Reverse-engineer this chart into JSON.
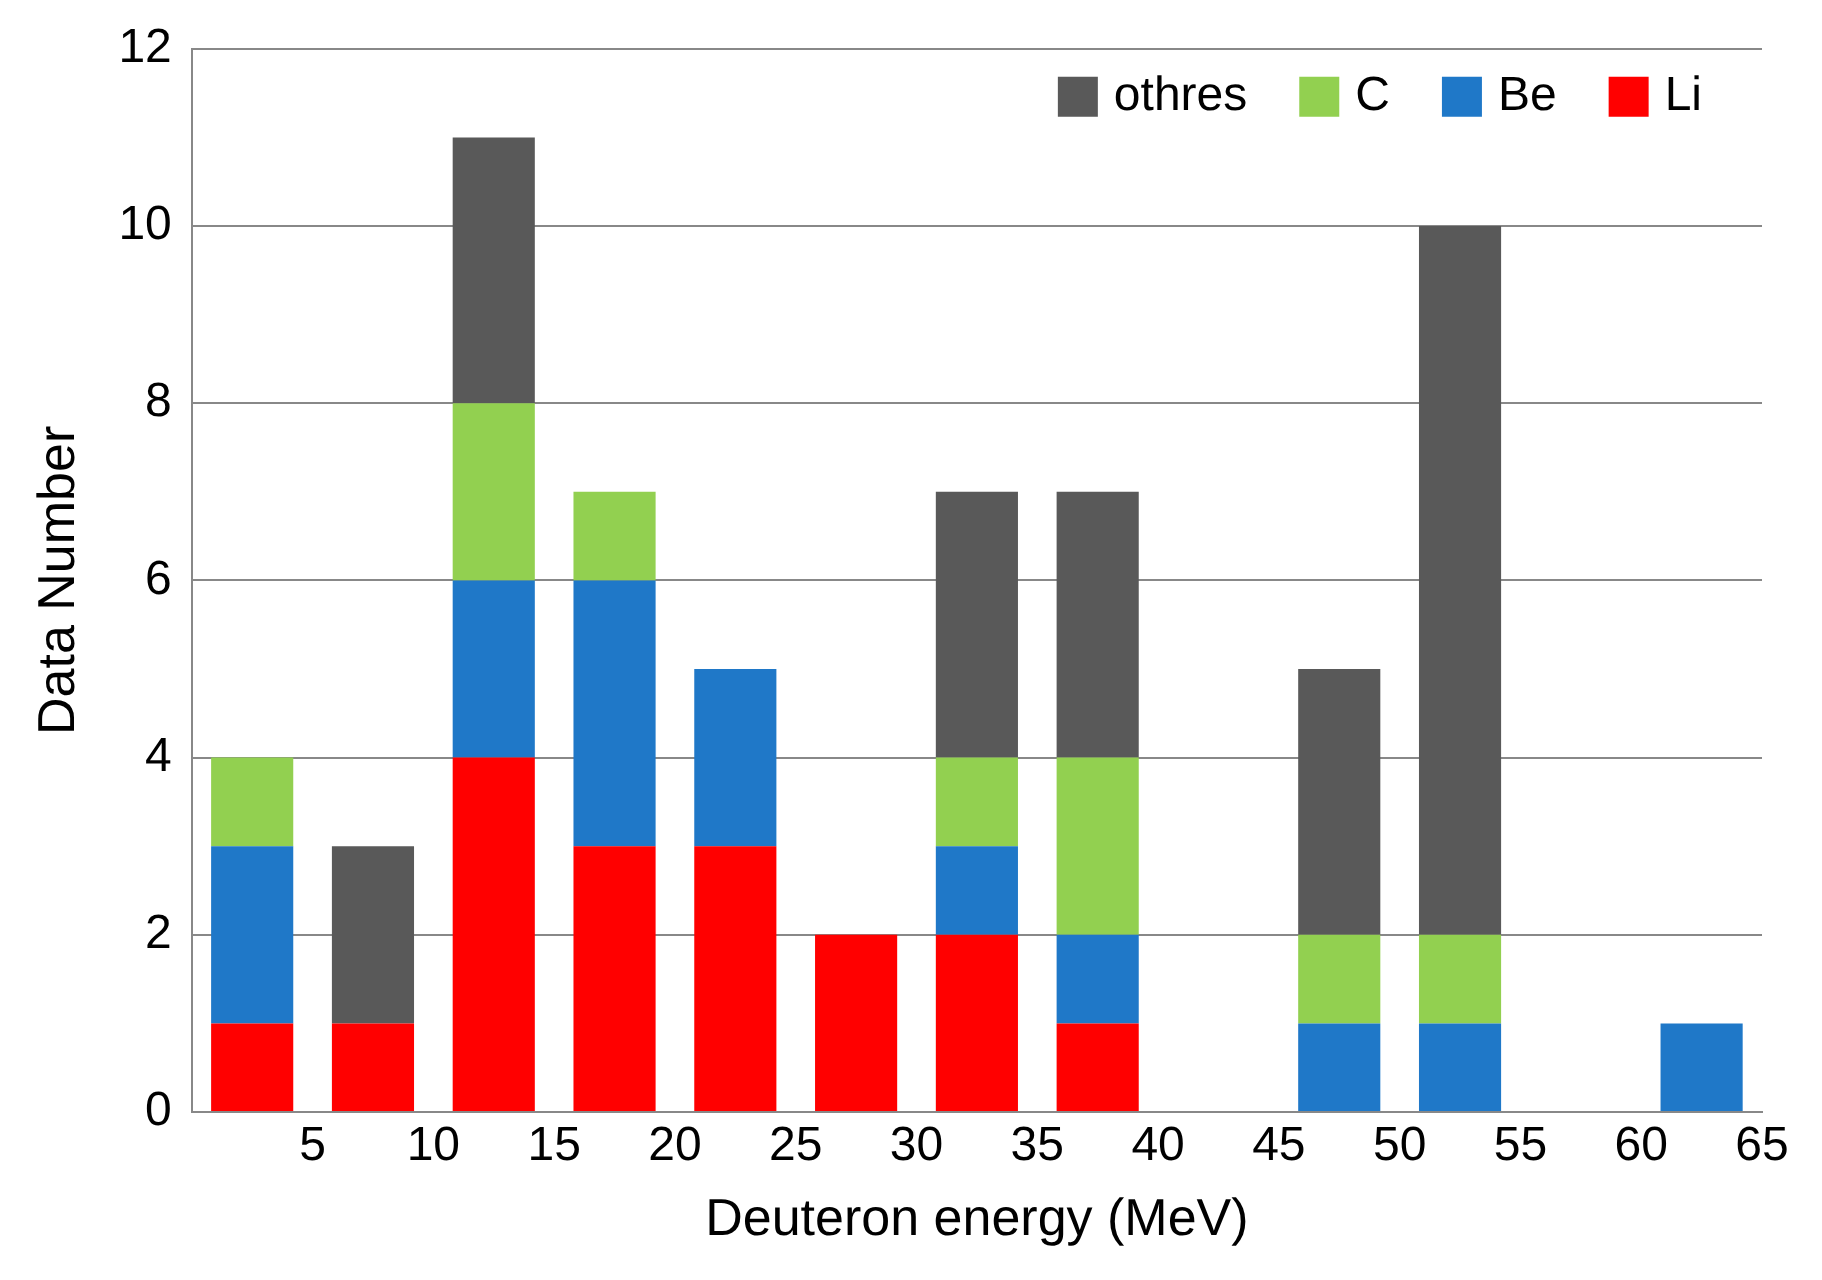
{
  "chart_data": {
    "type": "bar",
    "xlabel": "Deuteron energy (MeV)",
    "ylabel": "Data Number",
    "x": [
      2.5,
      7.5,
      12.5,
      17.5,
      22.5,
      27.5,
      32.5,
      37.5,
      42.5,
      47.5,
      52.5,
      57.5,
      62.5
    ],
    "stacked": true,
    "series": [
      {
        "name": "Li",
        "color": "#ff0000",
        "values": [
          1,
          1,
          4,
          3,
          3,
          2,
          2,
          1,
          0,
          0,
          0,
          0,
          0
        ]
      },
      {
        "name": "Be",
        "color": "#1f78c8",
        "values": [
          2,
          0,
          2,
          3,
          2,
          0,
          1,
          1,
          0,
          1,
          1,
          0,
          1
        ]
      },
      {
        "name": "C",
        "color": "#92d050",
        "values": [
          1,
          0,
          2,
          1,
          0,
          0,
          1,
          2,
          0,
          1,
          1,
          0,
          0
        ]
      },
      {
        "name": "othres",
        "color": "#595959",
        "values": [
          0,
          2,
          3,
          0,
          0,
          0,
          3,
          3,
          0,
          3,
          8,
          0,
          0
        ]
      }
    ],
    "xlim": [
      0,
      65
    ],
    "xticks": [
      5,
      10,
      15,
      20,
      25,
      30,
      35,
      40,
      45,
      50,
      55,
      60,
      65
    ],
    "ylim": [
      0,
      12
    ],
    "yticks": [
      0,
      2,
      4,
      6,
      8,
      10,
      12
    ],
    "grid": "y",
    "legend": "top right"
  }
}
